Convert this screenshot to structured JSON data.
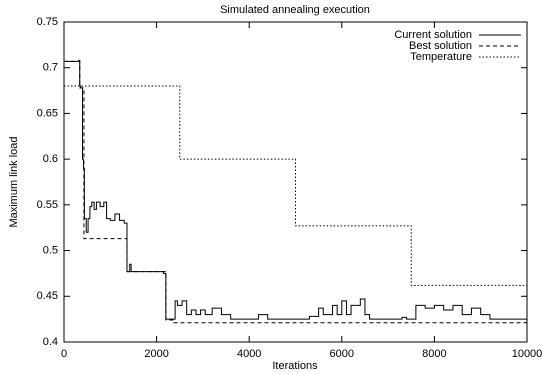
{
  "chart_data": {
    "type": "line",
    "title": "Simulated annealing execution",
    "x_label": "Iterations",
    "y_label": "Maximum link load",
    "xlim": [
      0,
      10000
    ],
    "xticks": [
      0,
      2000,
      4000,
      6000,
      8000,
      10000
    ],
    "ylim": [
      0.4,
      0.75
    ],
    "yticks": [
      0.4,
      0.45,
      0.5,
      0.55,
      0.6,
      0.65,
      0.7,
      0.75
    ],
    "step": true,
    "legend": "top-right",
    "series": [
      {
        "name": "Current solution",
        "color": "#000000",
        "dash": "solid",
        "x": [
          0,
          320,
          340,
          360,
          400,
          420,
          440,
          480,
          520,
          560,
          600,
          650,
          700,
          780,
          860,
          920,
          1000,
          1100,
          1200,
          1300,
          1360,
          1420,
          1450,
          2150,
          2200,
          2400,
          2450,
          2550,
          2650,
          2750,
          2850,
          2950,
          3050,
          3200,
          3400,
          3600,
          4000,
          4200,
          4400,
          5300,
          5500,
          5600,
          5800,
          5900,
          6000,
          6100,
          6200,
          6400,
          6500,
          6600,
          7200,
          7300,
          7400,
          7600,
          7800,
          8000,
          8200,
          8400,
          8600,
          8800,
          9000,
          9200,
          10000
        ],
        "values": [
          0.707,
          0.708,
          0.68,
          0.678,
          0.6,
          0.59,
          0.535,
          0.52,
          0.535,
          0.548,
          0.553,
          0.545,
          0.553,
          0.548,
          0.553,
          0.535,
          0.533,
          0.54,
          0.533,
          0.53,
          0.477,
          0.485,
          0.477,
          0.475,
          0.425,
          0.445,
          0.44,
          0.445,
          0.43,
          0.435,
          0.43,
          0.435,
          0.43,
          0.437,
          0.43,
          0.425,
          0.425,
          0.43,
          0.425,
          0.428,
          0.437,
          0.43,
          0.44,
          0.43,
          0.445,
          0.43,
          0.44,
          0.447,
          0.43,
          0.425,
          0.425,
          0.427,
          0.425,
          0.44,
          0.437,
          0.44,
          0.435,
          0.44,
          0.43,
          0.437,
          0.43,
          0.425,
          0.425
        ]
      },
      {
        "name": "Best solution",
        "color": "#000000",
        "dash": "dashed",
        "x": [
          0,
          340,
          430,
          1360,
          2200,
          2350,
          10000
        ],
        "values": [
          0.707,
          0.678,
          0.513,
          0.477,
          0.424,
          0.421,
          0.421
        ]
      },
      {
        "name": "Temperature",
        "color": "#000000",
        "dash": "dotted",
        "x": [
          0,
          2500,
          5000,
          7500,
          10000
        ],
        "values": [
          0.68,
          0.6,
          0.527,
          0.462,
          0.462
        ]
      }
    ]
  }
}
